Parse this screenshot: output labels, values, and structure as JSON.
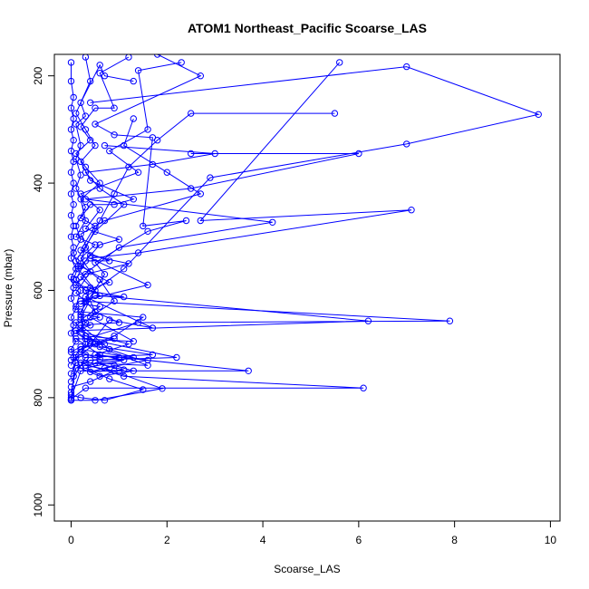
{
  "chart_data": {
    "type": "line",
    "title": "ATOM1 Northeast_Pacific Scoarse_LAS",
    "xlabel": "Scoarse_LAS",
    "ylabel": "Pressure (mbar)",
    "xlim": [
      -0.35,
      10.2
    ],
    "ylim": [
      1030,
      160
    ],
    "y_inverted": true,
    "xticks": [
      0,
      2,
      4,
      6,
      8,
      10
    ],
    "yticks": [
      200,
      400,
      600,
      800,
      1000
    ],
    "grid": false,
    "legend": "none",
    "color": "#0000ff",
    "marker": "open-circle",
    "series": [
      {
        "points": [
          [
            0,
            805
          ],
          [
            0.05,
            760
          ],
          [
            0.1,
            720
          ],
          [
            0.3,
            700
          ],
          [
            0.2,
            650
          ],
          [
            0.5,
            600
          ],
          [
            0.15,
            560
          ],
          [
            0.3,
            520
          ],
          [
            0.6,
            470
          ],
          [
            0.9,
            420
          ],
          [
            1.2,
            370
          ],
          [
            1.8,
            320
          ],
          [
            2.5,
            270
          ],
          [
            5.5,
            270
          ]
        ]
      },
      {
        "points": [
          [
            0,
            790
          ],
          [
            0.1,
            745
          ],
          [
            0.4,
            730
          ],
          [
            2.2,
            725
          ],
          [
            0.3,
            690
          ],
          [
            1.4,
            660
          ],
          [
            7.9,
            657
          ],
          [
            0.2,
            620
          ],
          [
            1.6,
            590
          ],
          [
            0.4,
            540
          ],
          [
            1.4,
            530
          ],
          [
            7.1,
            450
          ],
          [
            2.7,
            470
          ],
          [
            5.6,
            175
          ]
        ]
      },
      {
        "points": [
          [
            0,
            800
          ],
          [
            0.2,
            750
          ],
          [
            3.7,
            750
          ],
          [
            0.5,
            720
          ],
          [
            1.2,
            700
          ],
          [
            0.1,
            675
          ],
          [
            6.2,
            657
          ],
          [
            0.6,
            610
          ],
          [
            0.2,
            575
          ],
          [
            1.0,
            520
          ],
          [
            4.2,
            473
          ],
          [
            0.3,
            430
          ],
          [
            2.5,
            410
          ],
          [
            6.0,
            345
          ],
          [
            2.5,
            345
          ]
        ]
      },
      {
        "points": [
          [
            0,
            803
          ],
          [
            0.3,
            782
          ],
          [
            6.1,
            782
          ],
          [
            1.1,
            760
          ],
          [
            0.2,
            735
          ],
          [
            1.6,
            740
          ],
          [
            0.4,
            700
          ],
          [
            0.8,
            655
          ],
          [
            1.7,
            670
          ],
          [
            0.3,
            612
          ],
          [
            1.1,
            560
          ],
          [
            2.9,
            390
          ],
          [
            7.0,
            327
          ],
          [
            9.75,
            272
          ],
          [
            7.0,
            183
          ],
          [
            0.4,
            250
          ]
        ]
      },
      {
        "points": [
          [
            0,
            805
          ],
          [
            0.5,
            805
          ],
          [
            1.9,
            783
          ],
          [
            0.7,
            745
          ],
          [
            1.6,
            730
          ],
          [
            0.2,
            710
          ],
          [
            0.9,
            685
          ],
          [
            1.5,
            650
          ],
          [
            0.2,
            640
          ],
          [
            0.7,
            570
          ],
          [
            0.5,
            548
          ],
          [
            1.6,
            490
          ],
          [
            2.4,
            470
          ],
          [
            1.5,
            480
          ],
          [
            1.7,
            315
          ],
          [
            0.9,
            310
          ],
          [
            0.5,
            290
          ],
          [
            2.7,
            200
          ],
          [
            1.8,
            160
          ]
        ]
      },
      {
        "points": [
          [
            0,
            795
          ],
          [
            0.2,
            800
          ],
          [
            0.7,
            805
          ],
          [
            1.5,
            785
          ],
          [
            0.8,
            765
          ],
          [
            0.3,
            745
          ],
          [
            1.1,
            730
          ],
          [
            0.6,
            720
          ],
          [
            0.1,
            690
          ],
          [
            1.3,
            695
          ],
          [
            0.4,
            650
          ],
          [
            0.9,
            620
          ],
          [
            0.6,
            580
          ],
          [
            0.1,
            545
          ],
          [
            0.5,
            490
          ],
          [
            1.1,
            440
          ],
          [
            0.6,
            410
          ],
          [
            0.3,
            380
          ],
          [
            1.7,
            365
          ],
          [
            3.0,
            345
          ],
          [
            0.7,
            330
          ]
        ]
      },
      {
        "points": [
          [
            0,
            780
          ],
          [
            0.4,
            770
          ],
          [
            0.9,
            750
          ],
          [
            0.3,
            740
          ],
          [
            1.3,
            725
          ],
          [
            0.8,
            710
          ],
          [
            0.2,
            665
          ],
          [
            1.0,
            660
          ],
          [
            0.5,
            640
          ],
          [
            0.3,
            600
          ],
          [
            0.8,
            585
          ],
          [
            0.2,
            555
          ],
          [
            0.6,
            515
          ],
          [
            1.0,
            505
          ],
          [
            0.3,
            485
          ],
          [
            0.6,
            450
          ],
          [
            0.2,
            420
          ],
          [
            1.4,
            380
          ],
          [
            0.8,
            340
          ],
          [
            1.6,
            300
          ],
          [
            1.4,
            190
          ],
          [
            2.3,
            175
          ]
        ]
      },
      {
        "points": [
          [
            0,
            770
          ],
          [
            0.3,
            725
          ],
          [
            1.7,
            720
          ],
          [
            0.6,
            705
          ],
          [
            0.2,
            670
          ],
          [
            0.5,
            640
          ],
          [
            0.3,
            620
          ],
          [
            0.1,
            605
          ],
          [
            0.4,
            565
          ],
          [
            0.2,
            540
          ],
          [
            0.5,
            515
          ],
          [
            0.1,
            500
          ],
          [
            0.3,
            470
          ],
          [
            0.2,
            430
          ],
          [
            0.6,
            400
          ],
          [
            0.3,
            370
          ],
          [
            0.1,
            345
          ],
          [
            0.4,
            320
          ],
          [
            0.2,
            295
          ],
          [
            0.5,
            260
          ],
          [
            0.9,
            260
          ],
          [
            0.6,
            195
          ],
          [
            1.2,
            165
          ]
        ]
      },
      {
        "points": [
          [
            0,
            755
          ],
          [
            0.1,
            735
          ],
          [
            0.6,
            728
          ],
          [
            0.2,
            715
          ],
          [
            0.4,
            695
          ],
          [
            0.1,
            680
          ],
          [
            0.3,
            660
          ],
          [
            0.1,
            630
          ],
          [
            0.2,
            600
          ],
          [
            0.05,
            580
          ],
          [
            0.15,
            555
          ],
          [
            0.05,
            530
          ],
          [
            0.2,
            505
          ],
          [
            0.1,
            480
          ],
          [
            0.3,
            445
          ],
          [
            0.1,
            410
          ],
          [
            0.2,
            385
          ],
          [
            0.1,
            355
          ],
          [
            0.2,
            330
          ],
          [
            0.1,
            290
          ],
          [
            0.3,
            275
          ],
          [
            0.2,
            250
          ],
          [
            0.6,
            180
          ],
          [
            0.7,
            200
          ],
          [
            1.3,
            210
          ]
        ]
      },
      {
        "points": [
          [
            0,
            740
          ],
          [
            0.05,
            725
          ],
          [
            0,
            710
          ],
          [
            0.1,
            695
          ],
          [
            0,
            680
          ],
          [
            0.05,
            665
          ],
          [
            0,
            650
          ],
          [
            0.1,
            635
          ],
          [
            0,
            615
          ],
          [
            0.05,
            595
          ],
          [
            0,
            575
          ],
          [
            0.1,
            560
          ],
          [
            0,
            540
          ],
          [
            0.05,
            520
          ],
          [
            0,
            500
          ],
          [
            0.05,
            480
          ],
          [
            0,
            460
          ],
          [
            0.05,
            440
          ],
          [
            0,
            420
          ],
          [
            0.05,
            400
          ],
          [
            0,
            380
          ],
          [
            0.05,
            360
          ],
          [
            0,
            340
          ],
          [
            0.05,
            320
          ],
          [
            0,
            300
          ],
          [
            0.05,
            280
          ],
          [
            0,
            260
          ],
          [
            0.05,
            240
          ],
          [
            0,
            210
          ],
          [
            0,
            175
          ]
        ]
      },
      {
        "points": [
          [
            0,
            730
          ],
          [
            0.3,
            720
          ],
          [
            1.0,
            725
          ],
          [
            0.5,
            735
          ],
          [
            1.1,
            748
          ],
          [
            0.4,
            752
          ],
          [
            0.9,
            740
          ],
          [
            1.3,
            750
          ],
          [
            0.6,
            760
          ],
          [
            0.2,
            745
          ],
          [
            0.1,
            725
          ],
          [
            0.5,
            700
          ],
          [
            0.9,
            690
          ],
          [
            0.3,
            685
          ],
          [
            0.1,
            660
          ],
          [
            0.6,
            650
          ],
          [
            0.2,
            645
          ],
          [
            0.4,
            595
          ],
          [
            0.1,
            590
          ],
          [
            0.3,
            570
          ],
          [
            1.2,
            550
          ],
          [
            0.4,
            535
          ],
          [
            0.2,
            495
          ],
          [
            0.7,
            470
          ],
          [
            2.7,
            420
          ],
          [
            2.0,
            380
          ],
          [
            1.1,
            330
          ],
          [
            1.3,
            280
          ]
        ]
      },
      {
        "points": [
          [
            0,
            715
          ],
          [
            0.2,
            705
          ],
          [
            0.7,
            700
          ],
          [
            0.3,
            690
          ],
          [
            0.1,
            675
          ],
          [
            0.4,
            665
          ],
          [
            0.2,
            655
          ],
          [
            0.6,
            630
          ],
          [
            0.2,
            625
          ],
          [
            0.5,
            610
          ],
          [
            1.1,
            612
          ],
          [
            0.3,
            600
          ],
          [
            0.1,
            580
          ],
          [
            0.3,
            545
          ],
          [
            0.8,
            545
          ],
          [
            0.2,
            525
          ],
          [
            0.5,
            480
          ],
          [
            0.2,
            465
          ],
          [
            0.4,
            440
          ],
          [
            0.9,
            440
          ],
          [
            1.3,
            430
          ],
          [
            0.4,
            395
          ],
          [
            0.2,
            360
          ],
          [
            0.5,
            330
          ],
          [
            0.3,
            300
          ],
          [
            0.1,
            270
          ],
          [
            0.4,
            210
          ],
          [
            0.3,
            165
          ]
        ]
      }
    ]
  }
}
